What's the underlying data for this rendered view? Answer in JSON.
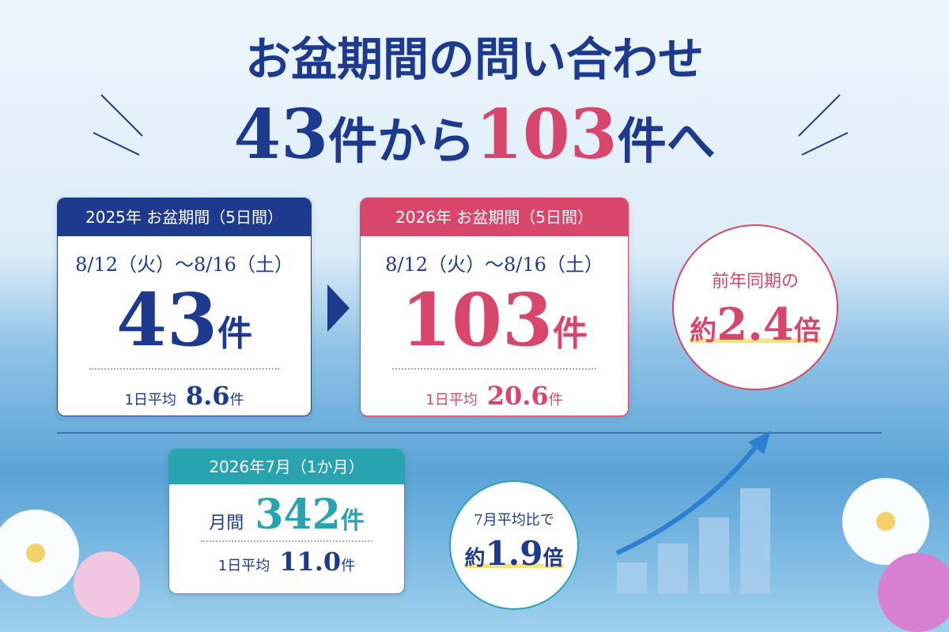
{
  "title": {
    "line1": "お盆期間の問い合わせ",
    "line2": [
      "43",
      "件から",
      "103",
      "件へ"
    ]
  },
  "card_2025": {
    "header": "2025年 お盆期間（5日間）",
    "dates": "8/12（火）～8/16（土）",
    "count": "43",
    "count_unit": "件",
    "avg_label": "1日平均",
    "avg": "8.6",
    "avg_unit": "件"
  },
  "card_2026": {
    "header": "2026年 お盆期間（5日間）",
    "dates": "8/12（火）～8/16（土）",
    "count": "103",
    "count_unit": "件",
    "avg_label": "1日平均",
    "avg": "20.6",
    "avg_unit": "件"
  },
  "ratio_year": {
    "caption": "前年同期の",
    "prefix": "約",
    "value": "2.4",
    "suffix": "倍"
  },
  "card_july": {
    "header": "2026年7月（1か月）",
    "month_label": "月間",
    "count": "342",
    "count_unit": "件",
    "avg_label": "1日平均",
    "avg": "11.0",
    "avg_unit": "件"
  },
  "ratio_july": {
    "caption": "7月平均比で",
    "prefix": "約",
    "value": "1.9",
    "suffix": "倍"
  }
}
